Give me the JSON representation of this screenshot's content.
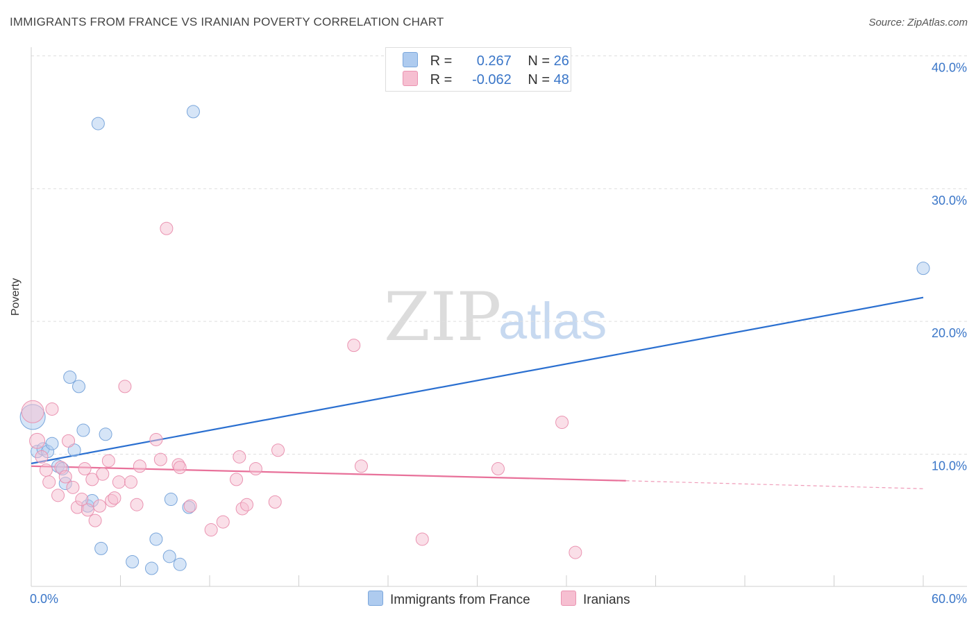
{
  "title": "IMMIGRANTS FROM FRANCE VS IRANIAN POVERTY CORRELATION CHART",
  "source": "Source: ZipAtlas.com",
  "watermark": {
    "zip": "ZIP",
    "atlas": "atlas"
  },
  "legend_stats": {
    "france": {
      "r_label": "R =",
      "r_value": "0.267",
      "n_label": "N =",
      "n_value": "26"
    },
    "iranians": {
      "r_label": "R =",
      "r_value": "-0.062",
      "n_label": "N =",
      "n_value": "48"
    }
  },
  "colors": {
    "blue_fill": "#aecbef",
    "blue_stroke": "#7aa6db",
    "blue_line": "#2a6fd0",
    "pink_fill": "#f6bfd1",
    "pink_stroke": "#ea93b1",
    "pink_line": "#e8719a",
    "tick_text": "#3a76c8"
  },
  "chart_data": {
    "type": "scatter",
    "title": "IMMIGRANTS FROM FRANCE VS IRANIAN POVERTY CORRELATION CHART",
    "xlabel": "",
    "ylabel": "Poverty",
    "xlim": [
      0,
      60
    ],
    "ylim": [
      0,
      42
    ],
    "x_tick_labels": [
      {
        "value": 0,
        "label": "0.0%"
      },
      {
        "value": 60,
        "label": "60.0%"
      }
    ],
    "y_tick_labels": [
      {
        "value": 10,
        "label": "10.0%"
      },
      {
        "value": 20,
        "label": "20.0%"
      },
      {
        "value": 30,
        "label": "30.0%"
      },
      {
        "value": 40,
        "label": "40.0%"
      }
    ],
    "series": [
      {
        "name": "Immigrants from France",
        "color": "blue",
        "r": 0.267,
        "n": 26,
        "points": [
          [
            0.1,
            12.8,
            18
          ],
          [
            0.4,
            10.2,
            9
          ],
          [
            0.8,
            10.4,
            9
          ],
          [
            1.1,
            10.2,
            9
          ],
          [
            1.4,
            10.8,
            9
          ],
          [
            1.8,
            9.1,
            9
          ],
          [
            2.1,
            8.9,
            9
          ],
          [
            2.3,
            7.8,
            9
          ],
          [
            2.6,
            15.8,
            9
          ],
          [
            2.9,
            10.3,
            9
          ],
          [
            3.2,
            15.1,
            9
          ],
          [
            3.5,
            11.8,
            9
          ],
          [
            3.8,
            6.1,
            9
          ],
          [
            4.1,
            6.5,
            9
          ],
          [
            4.5,
            34.9,
            9
          ],
          [
            4.7,
            2.9,
            9
          ],
          [
            5.0,
            11.5,
            9
          ],
          [
            6.8,
            1.9,
            9
          ],
          [
            8.1,
            1.4,
            9
          ],
          [
            8.4,
            3.6,
            9
          ],
          [
            9.3,
            2.3,
            9
          ],
          [
            9.4,
            6.6,
            9
          ],
          [
            10.0,
            1.7,
            9
          ],
          [
            10.6,
            6.0,
            9
          ],
          [
            10.9,
            35.8,
            9
          ],
          [
            60.0,
            24.0,
            9
          ]
        ],
        "trend": {
          "x0": 0,
          "y0": 9.3,
          "x1": 60,
          "y1": 21.8
        }
      },
      {
        "name": "Iranians",
        "color": "pink",
        "r": -0.062,
        "n": 48,
        "points": [
          [
            0.1,
            13.2,
            16
          ],
          [
            0.4,
            11.0,
            11
          ],
          [
            0.7,
            9.8,
            9
          ],
          [
            1.0,
            8.8,
            9
          ],
          [
            1.2,
            7.9,
            9
          ],
          [
            1.4,
            13.4,
            9
          ],
          [
            1.8,
            6.9,
            9
          ],
          [
            2.0,
            9.0,
            9
          ],
          [
            2.3,
            8.3,
            9
          ],
          [
            2.5,
            11.0,
            9
          ],
          [
            2.8,
            7.5,
            9
          ],
          [
            3.1,
            6.0,
            9
          ],
          [
            3.4,
            6.6,
            9
          ],
          [
            3.6,
            8.9,
            9
          ],
          [
            3.8,
            5.8,
            9
          ],
          [
            4.1,
            8.1,
            9
          ],
          [
            4.3,
            5.0,
            9
          ],
          [
            4.6,
            6.1,
            9
          ],
          [
            4.8,
            8.5,
            9
          ],
          [
            5.2,
            9.5,
            9
          ],
          [
            5.4,
            6.5,
            9
          ],
          [
            5.6,
            6.7,
            9
          ],
          [
            5.9,
            7.9,
            9
          ],
          [
            6.3,
            15.1,
            9
          ],
          [
            6.7,
            7.9,
            9
          ],
          [
            7.1,
            6.2,
            9
          ],
          [
            7.3,
            9.1,
            9
          ],
          [
            8.4,
            11.1,
            9
          ],
          [
            8.7,
            9.6,
            9
          ],
          [
            9.1,
            27.0,
            9
          ],
          [
            9.9,
            9.2,
            9
          ],
          [
            10.0,
            9.0,
            9
          ],
          [
            10.7,
            6.1,
            9
          ],
          [
            12.1,
            4.3,
            9
          ],
          [
            12.9,
            4.9,
            9
          ],
          [
            13.8,
            8.1,
            9
          ],
          [
            14.0,
            9.8,
            9
          ],
          [
            14.2,
            5.9,
            9
          ],
          [
            14.5,
            6.2,
            9
          ],
          [
            15.1,
            8.9,
            9
          ],
          [
            16.4,
            6.4,
            9
          ],
          [
            16.6,
            10.3,
            9
          ],
          [
            21.7,
            18.2,
            9
          ],
          [
            22.2,
            9.1,
            9
          ],
          [
            26.3,
            3.6,
            9
          ],
          [
            31.4,
            8.9,
            9
          ],
          [
            35.7,
            12.4,
            9
          ],
          [
            36.6,
            2.6,
            9
          ]
        ],
        "trend": {
          "x0": 0,
          "y0": 9.1,
          "x1": 40,
          "y1": 8.0
        },
        "trend_dashed": {
          "x0": 40,
          "y0": 8.0,
          "x1": 60,
          "y1": 7.4
        }
      }
    ]
  }
}
